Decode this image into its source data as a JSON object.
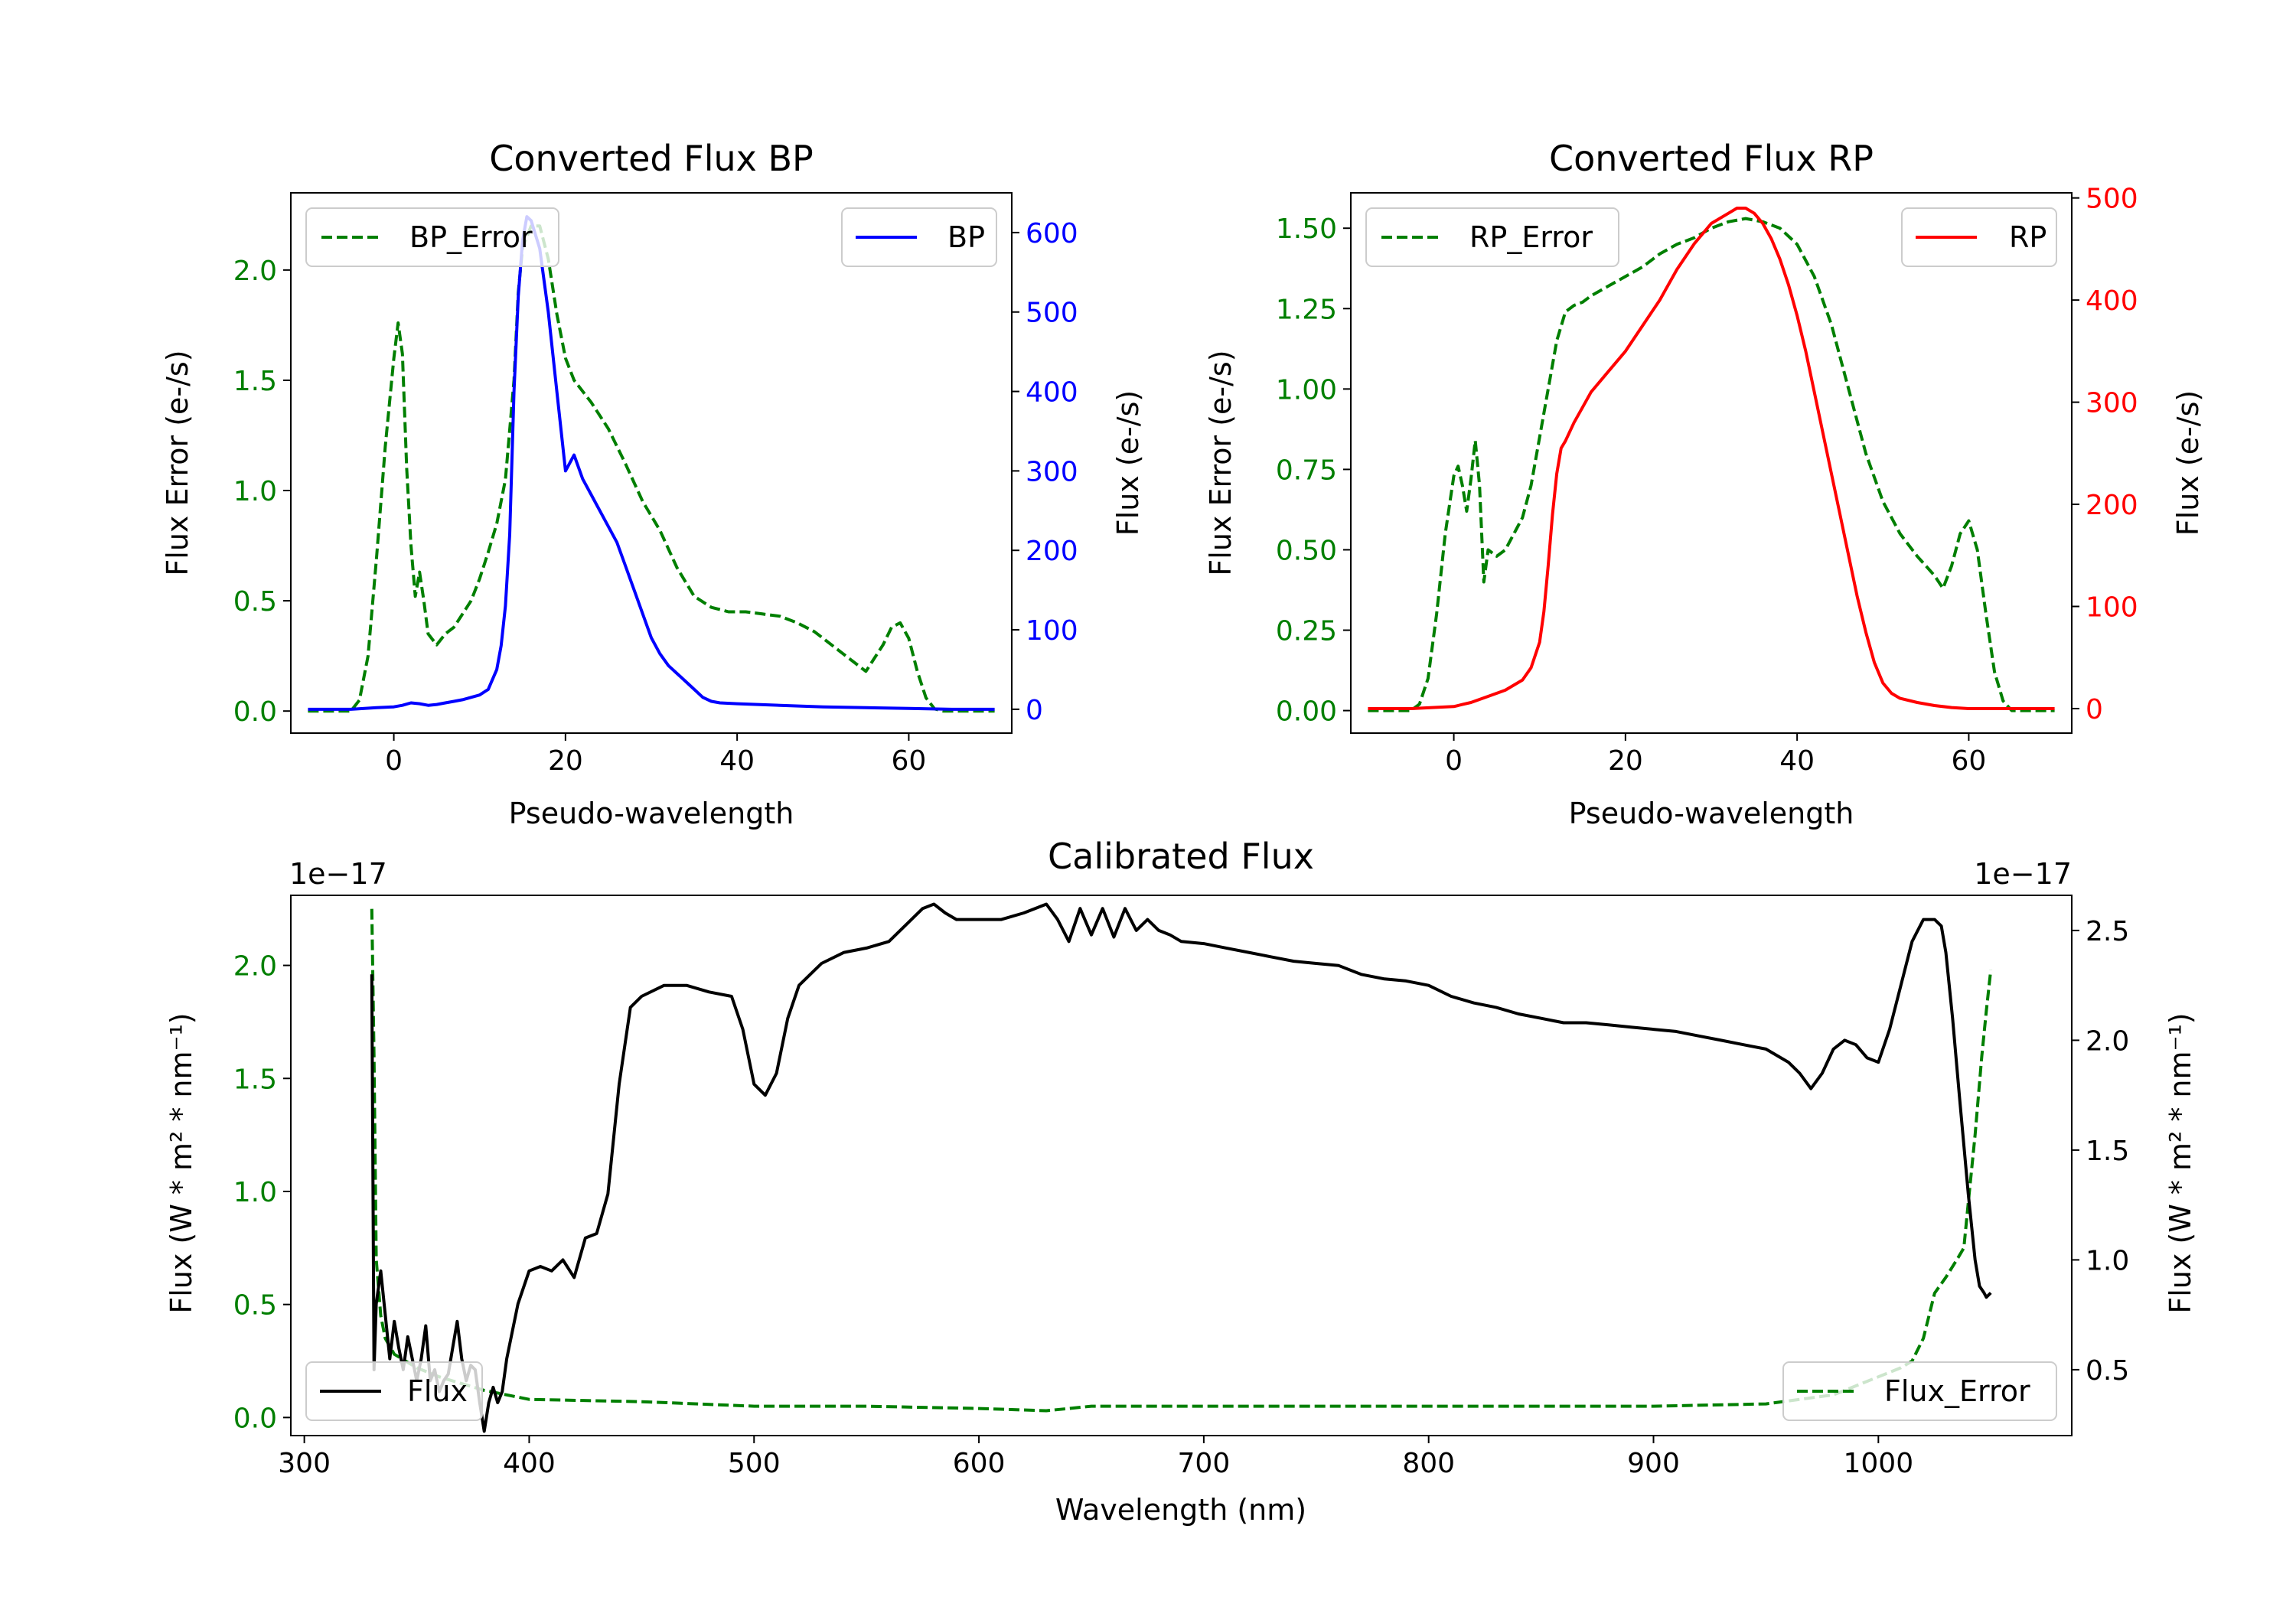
{
  "colors": {
    "error": "#007f00",
    "bp": "#0000ff",
    "rp": "#ff0000",
    "flux": "#000000",
    "axis": "#000000"
  },
  "chart_data": [
    {
      "id": "bp",
      "type": "line",
      "title": "Converted Flux BP",
      "xlabel": "Pseudo-wavelength",
      "ylabel_left": "Flux Error (e-/s)",
      "ylabel_right": "Flux (e-/s)",
      "xlim": [
        -12,
        72
      ],
      "ylim_left": [
        -0.1,
        2.35
      ],
      "ylim_right": [
        -30,
        650
      ],
      "xticks": [
        0,
        20,
        40,
        60
      ],
      "xtick_labels": [
        "0",
        "20",
        "40",
        "60"
      ],
      "yticks_left": [
        0.0,
        0.5,
        1.0,
        1.5,
        2.0
      ],
      "ytick_labels_left": [
        "0.0",
        "0.5",
        "1.0",
        "1.5",
        "2.0"
      ],
      "yticks_right": [
        0,
        100,
        200,
        300,
        400,
        500,
        600
      ],
      "ytick_labels_right": [
        "0",
        "100",
        "200",
        "300",
        "400",
        "500",
        "600"
      ],
      "legend_left_label": "BP_Error",
      "legend_right_label": "BP",
      "series": [
        {
          "name": "BP_Error",
          "axis": "left",
          "style": "dashed",
          "color_key": "error",
          "x": [
            -10,
            -5,
            -4,
            -3,
            -2,
            -1,
            0,
            0.5,
            1,
            1.5,
            2,
            2.5,
            3,
            3.5,
            4,
            5,
            6,
            7,
            8,
            9,
            10,
            11,
            12,
            13,
            14,
            14.5,
            15,
            16,
            17,
            18,
            19,
            20,
            21,
            22,
            23,
            25,
            27,
            29,
            31,
            33,
            35,
            37,
            39,
            41,
            43,
            45,
            47,
            49,
            51,
            53,
            55,
            57,
            58,
            59,
            60,
            61,
            62,
            63,
            64,
            65,
            66,
            68,
            70
          ],
          "y": [
            0,
            0,
            0.05,
            0.25,
            0.7,
            1.2,
            1.6,
            1.76,
            1.62,
            1.1,
            0.75,
            0.52,
            0.63,
            0.5,
            0.35,
            0.3,
            0.35,
            0.38,
            0.44,
            0.5,
            0.6,
            0.72,
            0.85,
            1.05,
            1.5,
            1.9,
            2.1,
            2.2,
            2.2,
            2.05,
            1.8,
            1.6,
            1.5,
            1.45,
            1.4,
            1.28,
            1.12,
            0.95,
            0.82,
            0.65,
            0.52,
            0.47,
            0.45,
            0.45,
            0.44,
            0.43,
            0.4,
            0.36,
            0.3,
            0.24,
            0.18,
            0.3,
            0.38,
            0.4,
            0.33,
            0.18,
            0.06,
            0.01,
            0,
            0,
            0,
            0,
            0
          ]
        },
        {
          "name": "BP",
          "axis": "right",
          "style": "solid",
          "color_key": "bp",
          "x": [
            -10,
            -5,
            -2,
            0,
            1,
            2,
            3,
            4,
            5,
            6,
            7,
            8,
            9,
            10,
            11,
            12,
            12.5,
            13,
            13.5,
            14,
            14.5,
            15,
            15.5,
            16,
            17,
            18,
            19,
            20,
            21,
            22,
            23,
            24,
            25,
            26,
            27,
            28,
            29,
            30,
            31,
            32,
            33,
            34,
            35,
            36,
            37,
            38,
            40,
            45,
            50,
            55,
            60,
            65,
            70
          ],
          "y": [
            0,
            0,
            2,
            3,
            5,
            8,
            7,
            5,
            6,
            8,
            10,
            12,
            15,
            18,
            25,
            50,
            80,
            130,
            220,
            400,
            520,
            590,
            620,
            615,
            580,
            500,
            400,
            300,
            320,
            290,
            270,
            250,
            230,
            210,
            180,
            150,
            120,
            90,
            70,
            55,
            45,
            35,
            25,
            15,
            10,
            8,
            7,
            5,
            3,
            2,
            1,
            0,
            0
          ]
        }
      ]
    },
    {
      "id": "rp",
      "type": "line",
      "title": "Converted Flux RP",
      "xlabel": "Pseudo-wavelength",
      "ylabel_left": "Flux Error (e-/s)",
      "ylabel_right": "Flux (e-/s)",
      "xlim": [
        -12,
        72
      ],
      "ylim_left": [
        -0.07,
        1.61
      ],
      "ylim_right": [
        -24,
        505
      ],
      "xticks": [
        0,
        20,
        40,
        60
      ],
      "xtick_labels": [
        "0",
        "20",
        "40",
        "60"
      ],
      "yticks_left": [
        0.0,
        0.25,
        0.5,
        0.75,
        1.0,
        1.25,
        1.5
      ],
      "ytick_labels_left": [
        "0.00",
        "0.25",
        "0.50",
        "0.75",
        "1.00",
        "1.25",
        "1.50"
      ],
      "yticks_right": [
        0,
        100,
        200,
        300,
        400,
        500
      ],
      "ytick_labels_right": [
        "0",
        "100",
        "200",
        "300",
        "400",
        "500"
      ],
      "legend_left_label": "RP_Error",
      "legend_right_label": "RP",
      "series": [
        {
          "name": "RP_Error",
          "axis": "left",
          "style": "dashed",
          "color_key": "error",
          "x": [
            -10,
            -5,
            -4,
            -3,
            -2,
            -1,
            0,
            0.5,
            1,
            1.5,
            2,
            2.5,
            3,
            3.5,
            4,
            5,
            6,
            7,
            8,
            9,
            10,
            11,
            12,
            13,
            14,
            15,
            16,
            18,
            20,
            22,
            24,
            26,
            28,
            30,
            32,
            34,
            36,
            38,
            40,
            42,
            44,
            46,
            48,
            50,
            52,
            54,
            55,
            56,
            57,
            58,
            59,
            60,
            61,
            62,
            63,
            64,
            65,
            66,
            68,
            70
          ],
          "y": [
            0,
            0,
            0.02,
            0.1,
            0.3,
            0.55,
            0.73,
            0.76,
            0.7,
            0.62,
            0.72,
            0.84,
            0.7,
            0.4,
            0.5,
            0.48,
            0.5,
            0.55,
            0.6,
            0.7,
            0.85,
            1.0,
            1.15,
            1.24,
            1.26,
            1.27,
            1.29,
            1.32,
            1.35,
            1.38,
            1.42,
            1.45,
            1.47,
            1.5,
            1.52,
            1.53,
            1.52,
            1.5,
            1.45,
            1.35,
            1.2,
            1.0,
            0.8,
            0.65,
            0.55,
            0.48,
            0.45,
            0.42,
            0.38,
            0.45,
            0.55,
            0.59,
            0.5,
            0.3,
            0.12,
            0.03,
            0,
            0,
            0,
            0
          ]
        },
        {
          "name": "RP",
          "axis": "right",
          "style": "solid",
          "color_key": "rp",
          "x": [
            -10,
            -5,
            0,
            1,
            2,
            4,
            6,
            8,
            9,
            10,
            10.5,
            11,
            11.5,
            12,
            12.5,
            13,
            14,
            15,
            16,
            18,
            20,
            22,
            24,
            26,
            28,
            30,
            32,
            33,
            34,
            35,
            36,
            37,
            38,
            39,
            40,
            41,
            42,
            43,
            44,
            45,
            46,
            47,
            48,
            49,
            50,
            51,
            52,
            54,
            56,
            58,
            60,
            65,
            70
          ],
          "y": [
            0,
            0,
            2,
            4,
            6,
            12,
            18,
            28,
            40,
            65,
            95,
            140,
            190,
            230,
            255,
            262,
            280,
            295,
            310,
            330,
            350,
            375,
            400,
            430,
            455,
            475,
            485,
            490,
            490,
            485,
            475,
            460,
            440,
            415,
            385,
            350,
            310,
            270,
            230,
            190,
            150,
            110,
            75,
            45,
            25,
            15,
            10,
            6,
            3,
            1,
            0,
            0,
            0
          ]
        }
      ]
    },
    {
      "id": "calibrated",
      "type": "line",
      "title": "Calibrated Flux",
      "xlabel": "Wavelength (nm)",
      "ylabel_left": "Flux (W * m² * nm⁻¹)",
      "ylabel_right": "Flux (W * m² * nm⁻¹)",
      "offset_left": "1e−17",
      "offset_right": "1e−17",
      "xlim": [
        294,
        1086
      ],
      "ylim_left": [
        -0.08,
        2.31
      ],
      "ylim_right": [
        0.2,
        2.66
      ],
      "xticks": [
        300,
        400,
        500,
        600,
        700,
        800,
        900,
        1000
      ],
      "xtick_labels": [
        "300",
        "400",
        "500",
        "600",
        "700",
        "800",
        "900",
        "1000"
      ],
      "yticks_left": [
        0.0,
        0.5,
        1.0,
        1.5,
        2.0
      ],
      "ytick_labels_left": [
        "0.0",
        "0.5",
        "1.0",
        "1.5",
        "2.0"
      ],
      "yticks_right": [
        0.5,
        1.0,
        1.5,
        2.0,
        2.5
      ],
      "ytick_labels_right": [
        "0.5",
        "1.0",
        "1.5",
        "2.0",
        "2.5"
      ],
      "legend_left_label": "Flux",
      "legend_right_label": "Flux_Error",
      "series": [
        {
          "name": "Flux",
          "axis": "right",
          "style": "solid",
          "color_key": "flux",
          "x": [
            330,
            331,
            332,
            334,
            336,
            338,
            340,
            342,
            344,
            346,
            348,
            350,
            352,
            354,
            356,
            358,
            360,
            362,
            364,
            366,
            368,
            370,
            372,
            374,
            376,
            378,
            380,
            382,
            384,
            386,
            388,
            390,
            395,
            400,
            405,
            410,
            415,
            420,
            425,
            430,
            435,
            440,
            445,
            450,
            460,
            470,
            480,
            490,
            495,
            500,
            505,
            510,
            515,
            520,
            525,
            530,
            540,
            550,
            560,
            570,
            575,
            580,
            585,
            590,
            600,
            610,
            620,
            630,
            635,
            640,
            645,
            650,
            655,
            660,
            665,
            670,
            675,
            680,
            685,
            690,
            700,
            710,
            720,
            730,
            740,
            750,
            760,
            770,
            780,
            790,
            800,
            810,
            820,
            830,
            840,
            850,
            860,
            870,
            880,
            890,
            900,
            910,
            920,
            930,
            940,
            950,
            960,
            965,
            970,
            975,
            980,
            985,
            990,
            995,
            1000,
            1005,
            1010,
            1015,
            1020,
            1025,
            1028,
            1030,
            1033,
            1036,
            1040,
            1043,
            1045,
            1047,
            1048,
            1050
          ],
          "y": [
            2.3,
            0.5,
            0.8,
            0.95,
            0.75,
            0.55,
            0.72,
            0.6,
            0.5,
            0.65,
            0.55,
            0.45,
            0.55,
            0.7,
            0.45,
            0.5,
            0.4,
            0.45,
            0.48,
            0.6,
            0.72,
            0.55,
            0.45,
            0.52,
            0.5,
            0.35,
            0.22,
            0.35,
            0.42,
            0.35,
            0.4,
            0.55,
            0.8,
            0.95,
            0.97,
            0.95,
            1.0,
            0.92,
            1.1,
            1.12,
            1.3,
            1.8,
            2.15,
            2.2,
            2.25,
            2.25,
            2.22,
            2.2,
            2.05,
            1.8,
            1.75,
            1.85,
            2.1,
            2.25,
            2.3,
            2.35,
            2.4,
            2.42,
            2.45,
            2.55,
            2.6,
            2.62,
            2.58,
            2.55,
            2.55,
            2.55,
            2.58,
            2.62,
            2.55,
            2.45,
            2.6,
            2.48,
            2.6,
            2.47,
            2.6,
            2.5,
            2.55,
            2.5,
            2.48,
            2.45,
            2.44,
            2.42,
            2.4,
            2.38,
            2.36,
            2.35,
            2.34,
            2.3,
            2.28,
            2.27,
            2.25,
            2.2,
            2.17,
            2.15,
            2.12,
            2.1,
            2.08,
            2.08,
            2.07,
            2.06,
            2.05,
            2.04,
            2.02,
            2.0,
            1.98,
            1.96,
            1.9,
            1.85,
            1.78,
            1.85,
            1.96,
            2.0,
            1.98,
            1.92,
            1.9,
            2.05,
            2.25,
            2.45,
            2.55,
            2.55,
            2.52,
            2.4,
            2.1,
            1.75,
            1.3,
            1.0,
            0.88,
            0.85,
            0.83,
            0.85
          ]
        },
        {
          "name": "Flux_Error",
          "axis": "left",
          "style": "dashed",
          "color_key": "error",
          "x": [
            330,
            331,
            332,
            334,
            336,
            340,
            345,
            350,
            360,
            370,
            380,
            390,
            400,
            450,
            500,
            550,
            600,
            630,
            640,
            650,
            700,
            750,
            800,
            850,
            900,
            950,
            980,
            1000,
            1010,
            1015,
            1020,
            1025,
            1030,
            1035,
            1038,
            1040,
            1043,
            1046,
            1048,
            1050
          ],
          "y": [
            2.25,
            1.6,
            0.7,
            0.45,
            0.35,
            0.28,
            0.25,
            0.22,
            0.18,
            0.15,
            0.12,
            0.1,
            0.08,
            0.07,
            0.05,
            0.05,
            0.04,
            0.03,
            0.04,
            0.05,
            0.05,
            0.05,
            0.05,
            0.05,
            0.05,
            0.06,
            0.1,
            0.18,
            0.22,
            0.25,
            0.35,
            0.55,
            0.62,
            0.7,
            0.75,
            0.95,
            1.25,
            1.6,
            1.8,
            1.98
          ]
        }
      ]
    }
  ]
}
